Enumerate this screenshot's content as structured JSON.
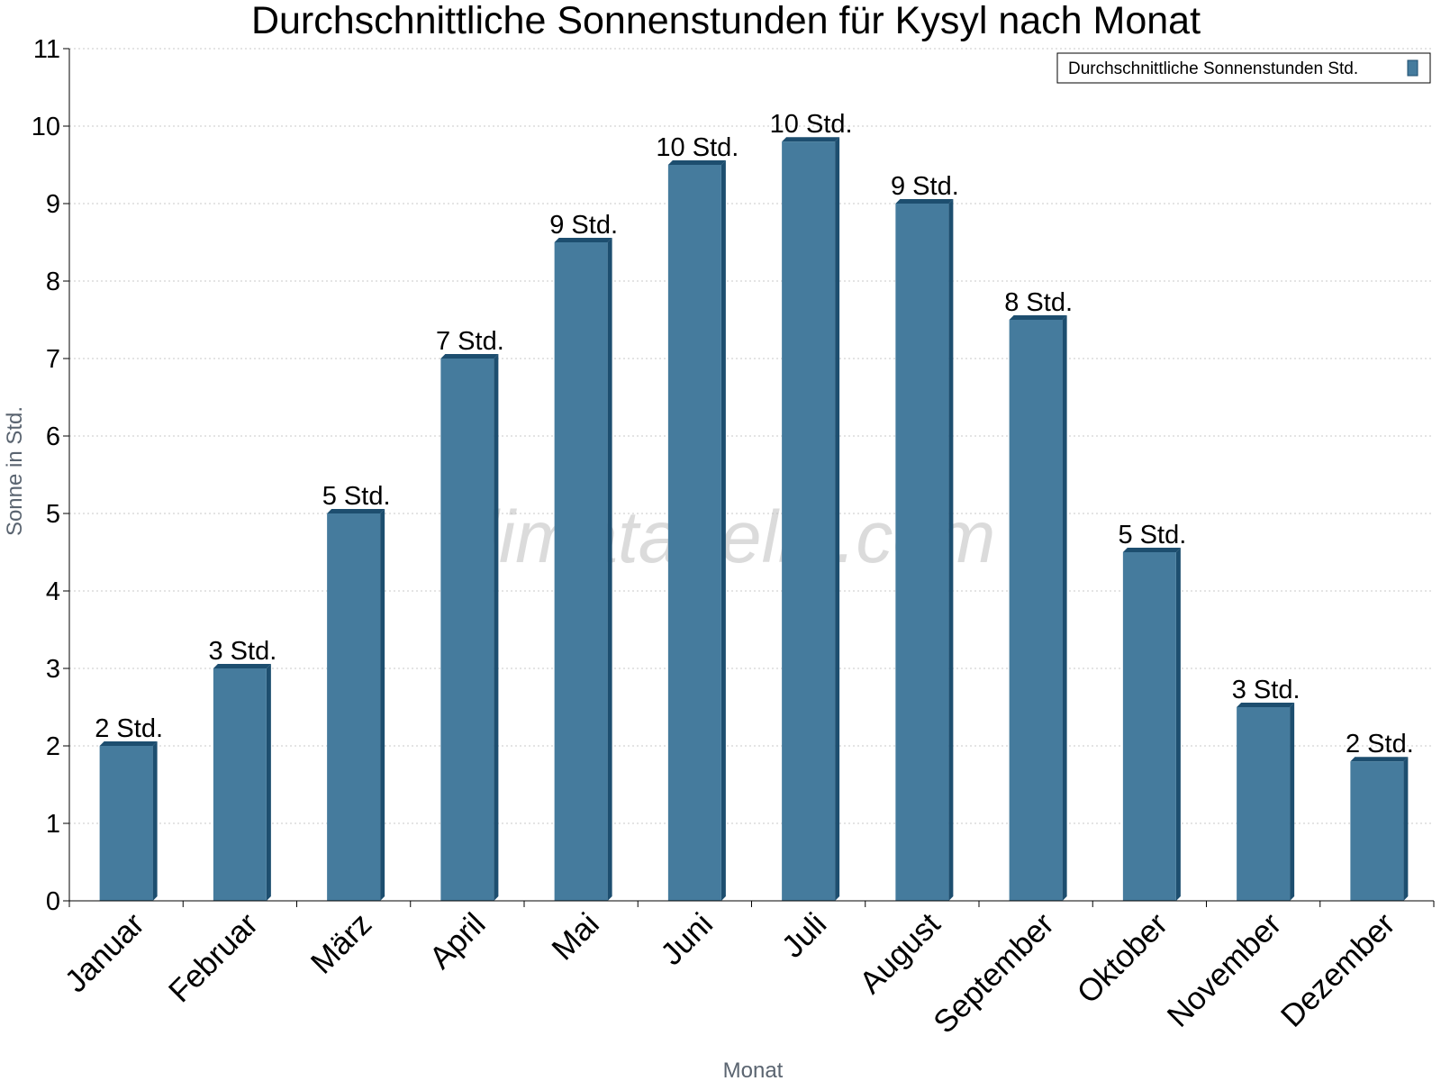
{
  "chart_data": {
    "type": "bar",
    "title": "Durchschnittliche Sonnenstunden für Kysyl nach Monat",
    "xlabel": "Monat",
    "ylabel": "Sonne in Std.",
    "ylim": [
      0,
      11
    ],
    "yticks": [
      "0",
      "1",
      "2",
      "3",
      "4",
      "5",
      "6",
      "7",
      "8",
      "9",
      "10",
      "11"
    ],
    "grid": true,
    "legend_position": "top-right",
    "categories": [
      "Januar",
      "Februar",
      "März",
      "April",
      "Mai",
      "Juni",
      "Juli",
      "August",
      "September",
      "Oktober",
      "November",
      "Dezember"
    ],
    "series": [
      {
        "name": "Durchschnittliche Sonnenstunden Std.",
        "values": [
          2.0,
          3.0,
          5.0,
          7.0,
          8.5,
          9.5,
          9.8,
          9.0,
          7.5,
          4.5,
          2.5,
          1.8
        ],
        "labels": [
          "2 Std.",
          "3 Std.",
          "5 Std.",
          "7 Std.",
          "9 Std.",
          "10 Std.",
          "10 Std.",
          "9 Std.",
          "8 Std.",
          "5 Std.",
          "3 Std.",
          "2 Std."
        ],
        "color": "#457b9d",
        "side_color": "#1d4e6f"
      }
    ]
  },
  "watermark": "klimatabelle.com"
}
